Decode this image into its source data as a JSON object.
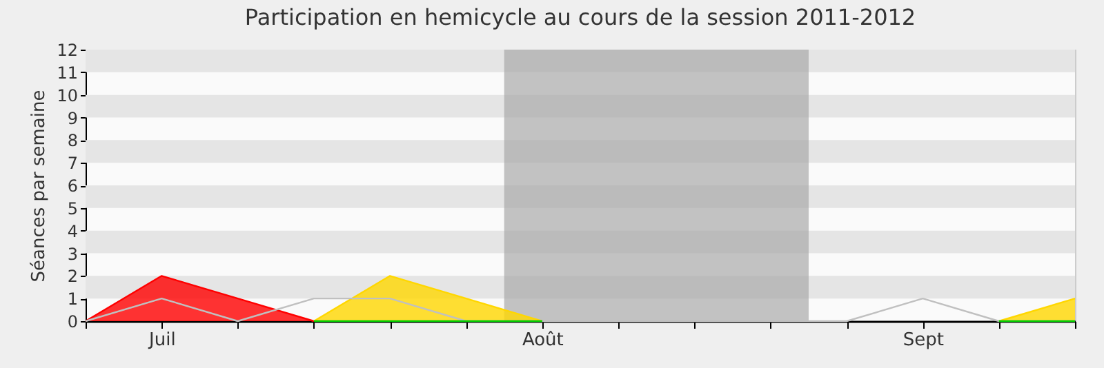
{
  "chart_data": {
    "type": "area",
    "title": "Participation en hemicycle au cours de la session 2011-2012",
    "ylabel": "Séances par semaine",
    "categories": [
      null,
      "Juil",
      null,
      null,
      null,
      null,
      "Août",
      null,
      null,
      null,
      null,
      "Sept",
      null,
      null
    ],
    "ylim": [
      0,
      12
    ],
    "yticks": [
      0,
      1,
      2,
      3,
      4,
      5,
      6,
      7,
      8,
      9,
      10,
      11,
      12
    ],
    "series": [
      {
        "type": "area",
        "color": "#ff0000",
        "values": [
          0,
          2,
          1,
          0,
          null,
          null,
          null,
          null,
          null,
          null,
          null,
          null,
          null,
          null
        ]
      },
      {
        "type": "area",
        "color": "#ffd700",
        "values": [
          null,
          null,
          null,
          0,
          2,
          1,
          0,
          null,
          null,
          null,
          null,
          null,
          0,
          1
        ]
      },
      {
        "type": "line",
        "color": "#c0c0c0",
        "values": [
          0,
          1,
          0,
          1,
          1,
          0,
          0,
          0,
          0,
          0,
          0,
          1,
          0,
          0
        ]
      },
      {
        "type": "line",
        "color": "#00cc00",
        "values": [
          null,
          null,
          null,
          0,
          0,
          0,
          0,
          null,
          null,
          null,
          null,
          null,
          0,
          0
        ]
      }
    ]
  }
}
